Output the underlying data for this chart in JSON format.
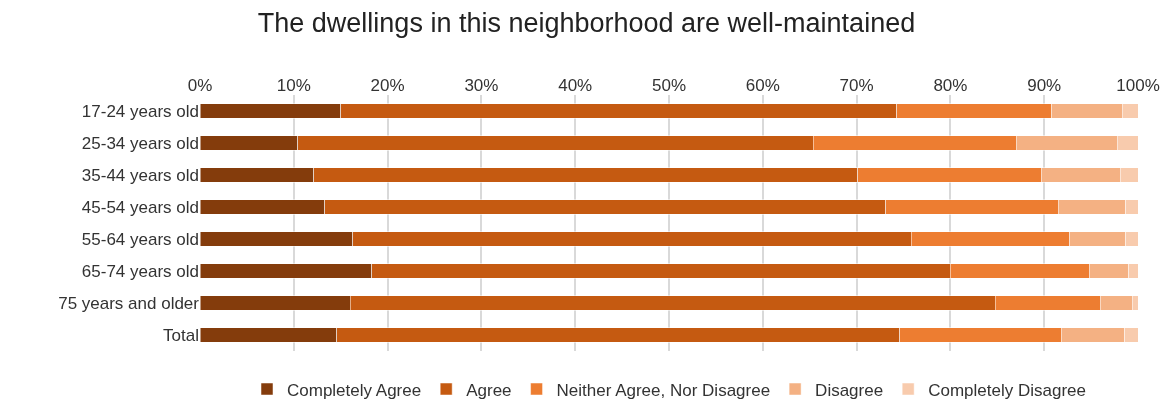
{
  "chart_data": {
    "type": "bar",
    "orientation": "horizontal",
    "stacked": true,
    "title": "The dwellings in this neighborhood are well-maintained",
    "categories": [
      "17-24 years old",
      "25-34 years old",
      "35-44 years old",
      "45-54 years old",
      "55-64 years old",
      "65-74 years old",
      "75 years and older",
      "Total"
    ],
    "series": [
      {
        "name": "Completely Agree",
        "color": "#843c0c",
        "values": [
          15.0,
          10.4,
          12.1,
          13.3,
          16.3,
          18.3,
          16.0,
          14.6
        ]
      },
      {
        "name": "Agree",
        "color": "#c55a11",
        "values": [
          59.3,
          55.0,
          58.0,
          59.8,
          59.5,
          61.7,
          68.8,
          60.0
        ]
      },
      {
        "name": "Neither Agree, Nor Disagree",
        "color": "#ed7d31",
        "values": [
          16.5,
          21.6,
          19.6,
          18.4,
          16.9,
          14.8,
          11.2,
          17.2
        ]
      },
      {
        "name": "Disagree",
        "color": "#f4b183",
        "values": [
          7.5,
          10.8,
          8.4,
          7.2,
          6.0,
          4.2,
          3.4,
          6.8
        ]
      },
      {
        "name": "Completely Disagree",
        "color": "#f8cbad",
        "values": [
          1.7,
          2.2,
          1.9,
          1.3,
          1.3,
          1.0,
          0.6,
          1.4
        ]
      }
    ],
    "xlim": [
      0,
      100
    ],
    "xticks": [
      {
        "value": 0,
        "label": "0%"
      },
      {
        "value": 10,
        "label": "10%"
      },
      {
        "value": 20,
        "label": "20%"
      },
      {
        "value": 30,
        "label": "30%"
      },
      {
        "value": 40,
        "label": "40%"
      },
      {
        "value": 50,
        "label": "50%"
      },
      {
        "value": 60,
        "label": "60%"
      },
      {
        "value": 70,
        "label": "70%"
      },
      {
        "value": 80,
        "label": "80%"
      },
      {
        "value": 90,
        "label": "90%"
      },
      {
        "value": 100,
        "label": "100%"
      }
    ],
    "grid": "x",
    "legend": "bottom"
  }
}
